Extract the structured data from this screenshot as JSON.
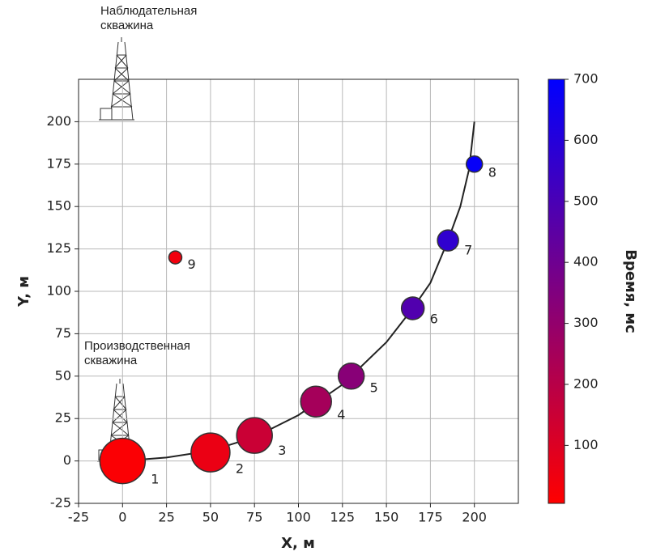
{
  "chart_data": {
    "type": "scatter",
    "x_label": "X, м",
    "y_label": "Y, м",
    "colorbar_label": "Время, мс",
    "annotations": [
      "Наблюдательная\nскважина",
      "Производственная\nскважина"
    ],
    "labels": [
      "1",
      "2",
      "3",
      "4",
      "5",
      "6",
      "7",
      "8",
      "9"
    ],
    "x": [
      0,
      50,
      75,
      110,
      130,
      165,
      185,
      200,
      30
    ],
    "y": [
      0,
      5,
      15,
      35,
      50,
      90,
      130,
      175,
      120
    ],
    "sizes": [
      28,
      24,
      22,
      19,
      16,
      14,
      13,
      10,
      8
    ],
    "time": [
      15,
      60,
      150,
      250,
      330,
      480,
      570,
      680,
      40
    ],
    "curve": {
      "x": [
        0,
        25,
        50,
        75,
        100,
        125,
        150,
        165,
        175,
        185,
        192,
        197,
        200
      ],
      "y": [
        0,
        2,
        6,
        14,
        27,
        45,
        70,
        90,
        105,
        130,
        150,
        172,
        200
      ]
    },
    "curve_color": "#222222",
    "colormap": [
      "#ff0000",
      "#0000ff"
    ],
    "clim": [
      5,
      700
    ],
    "cticks": [
      100,
      200,
      300,
      400,
      500,
      600,
      700
    ],
    "xlim": [
      -25,
      225
    ],
    "ylim": [
      -25,
      225
    ],
    "xticks": [
      -25,
      0,
      25,
      50,
      75,
      100,
      125,
      150,
      175,
      200
    ],
    "yticks": [
      -25,
      0,
      25,
      50,
      75,
      100,
      125,
      150,
      175,
      200
    ],
    "grid": true
  }
}
